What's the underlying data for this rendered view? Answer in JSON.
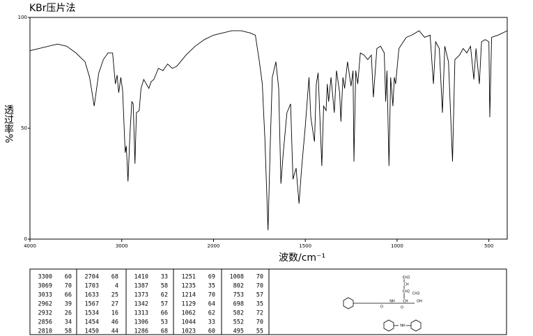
{
  "chart_data": {
    "type": "line",
    "title": "KBr压片法",
    "x_label": "波数/cm⁻¹",
    "y_label": "透过率%",
    "xlim": [
      4000,
      400
    ],
    "xticks": [
      4000,
      3000,
      2000,
      1500,
      1000,
      500
    ],
    "xscale": {
      "type": "split",
      "break": 2000,
      "factor": 2
    },
    "ylim": [
      0,
      100
    ],
    "yticks": [
      0,
      50,
      100
    ],
    "series": [
      {
        "name": "KBr",
        "color": "#000000",
        "x": [
          4000,
          3700,
          3600,
          3500,
          3400,
          3350,
          3300,
          3250,
          3200,
          3150,
          3100,
          3069,
          3050,
          3033,
          3010,
          2990,
          2962,
          2950,
          2932,
          2910,
          2890,
          2875,
          2856,
          2840,
          2810,
          2790,
          2760,
          2704,
          2680,
          2650,
          2600,
          2550,
          2500,
          2450,
          2400,
          2300,
          2200,
          2100,
          2000,
          1900,
          1850,
          1800,
          1772,
          1750,
          1734,
          1720,
          1703,
          1690,
          1680,
          1660,
          1645,
          1633,
          1620,
          1600,
          1580,
          1567,
          1550,
          1534,
          1520,
          1500,
          1480,
          1470,
          1454,
          1450,
          1440,
          1430,
          1410,
          1400,
          1387,
          1380,
          1373,
          1360,
          1342,
          1330,
          1313,
          1306,
          1295,
          1286,
          1270,
          1251,
          1240,
          1235,
          1225,
          1214,
          1200,
          1180,
          1160,
          1140,
          1129,
          1110,
          1090,
          1070,
          1062,
          1055,
          1044,
          1035,
          1023,
          1015,
          1008,
          990,
          950,
          920,
          880,
          850,
          820,
          802,
          790,
          770,
          753,
          740,
          720,
          698,
          685,
          660,
          640,
          620,
          600,
          582,
          570,
          552,
          540,
          520,
          500,
          495,
          485,
          450,
          400
        ],
        "values": [
          85,
          88,
          87,
          84,
          80,
          73,
          60,
          75,
          81,
          84,
          84,
          70,
          74,
          66,
          73,
          67,
          39,
          42,
          26,
          48,
          62,
          61,
          34,
          57,
          58,
          68,
          72,
          68,
          71,
          72,
          77,
          76,
          79,
          77,
          78,
          83,
          87,
          90,
          92,
          94,
          94,
          93,
          92,
          80,
          70,
          45,
          4,
          45,
          73,
          80,
          68,
          25,
          39,
          57,
          61,
          27,
          32,
          16,
          32,
          51,
          73,
          55,
          46,
          44,
          70,
          75,
          33,
          60,
          58,
          70,
          62,
          73,
          57,
          76,
          66,
          53,
          73,
          68,
          80,
          69,
          76,
          35,
          76,
          70,
          84,
          83,
          81,
          83,
          64,
          86,
          87,
          84,
          62,
          76,
          33,
          73,
          60,
          73,
          70,
          86,
          91,
          92,
          94,
          91,
          92,
          70,
          89,
          86,
          57,
          87,
          80,
          35,
          81,
          83,
          86,
          84,
          87,
          72,
          86,
          70,
          89,
          90,
          89,
          55,
          91,
          92,
          94
        ]
      }
    ]
  },
  "peak_table": {
    "columns": [
      [
        [
          3300,
          60
        ],
        [
          3069,
          70
        ],
        [
          3033,
          66
        ],
        [
          2962,
          39
        ],
        [
          2932,
          26
        ],
        [
          2856,
          34
        ],
        [
          2810,
          58
        ]
      ],
      [
        [
          2704,
          68
        ],
        [
          1703,
          4
        ],
        [
          1633,
          25
        ],
        [
          1567,
          27
        ],
        [
          1534,
          16
        ],
        [
          1454,
          46
        ],
        [
          1450,
          44
        ]
      ],
      [
        [
          1410,
          33
        ],
        [
          1387,
          58
        ],
        [
          1373,
          62
        ],
        [
          1342,
          57
        ],
        [
          1313,
          66
        ],
        [
          1306,
          53
        ],
        [
          1286,
          68
        ]
      ],
      [
        [
          1251,
          69
        ],
        [
          1235,
          35
        ],
        [
          1214,
          70
        ],
        [
          1129,
          64
        ],
        [
          1062,
          62
        ],
        [
          1044,
          33
        ],
        [
          1023,
          60
        ]
      ],
      [
        [
          1008,
          70
        ],
        [
          802,
          70
        ],
        [
          753,
          57
        ],
        [
          698,
          35
        ],
        [
          582,
          72
        ],
        [
          552,
          70
        ],
        [
          495,
          55
        ]
      ]
    ]
  },
  "structure": {
    "labels": [
      "CH3",
      "CH",
      "CH2",
      "CH3",
      "O",
      "O",
      "NH",
      "CH",
      "OH",
      "NH"
    ]
  }
}
